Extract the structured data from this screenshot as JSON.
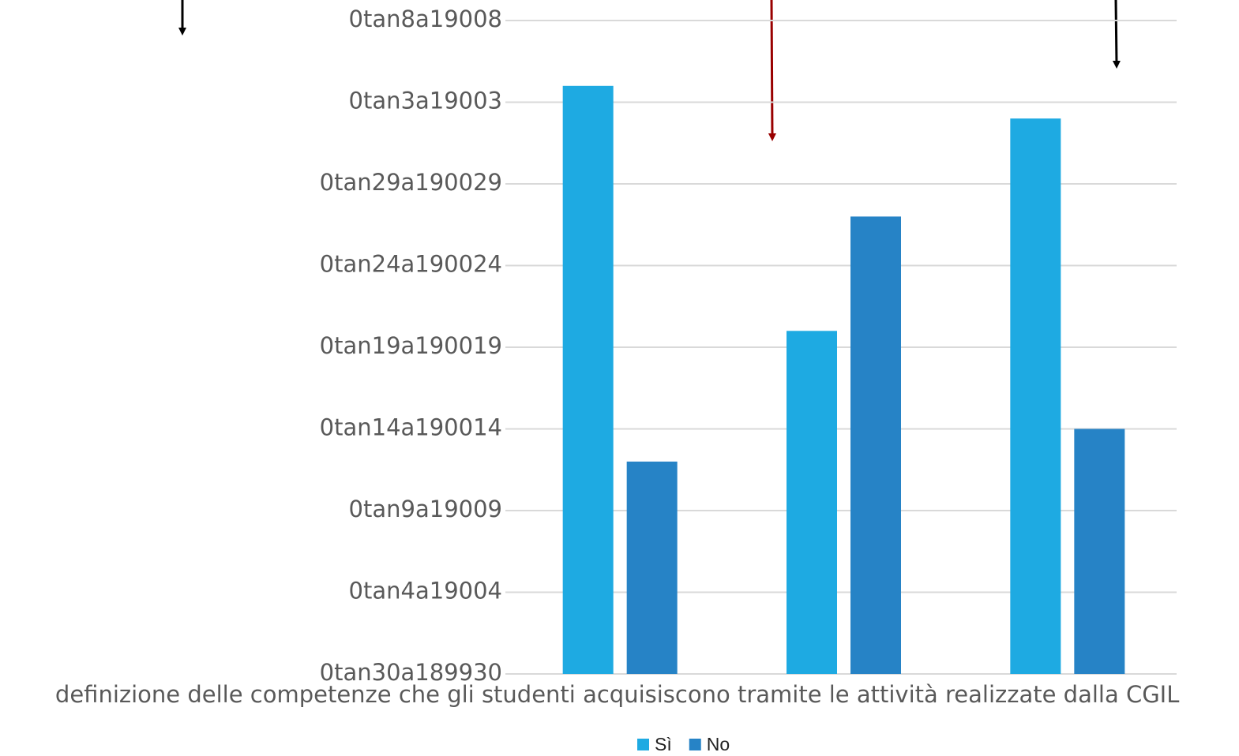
{
  "chart_data": {
    "type": "bar",
    "categories": [
      "definizione delle competenze che gli studenti acquisiscono tramite le attività realizzate dalla CGIL",
      null,
      null
    ],
    "series": [
      {
        "name": "Sì",
        "color": "#1eaae2",
        "values": [
          7.2,
          4.2,
          6.8
        ]
      },
      {
        "name": "No",
        "color": "#2683c6",
        "values": [
          2.6,
          5.6,
          3.0
        ]
      }
    ],
    "ylim": [
      0,
      8
    ],
    "yticks": [
      {
        "value": 0,
        "label": "0tan30a189930"
      },
      {
        "value": 1,
        "label": "0tan4a19004"
      },
      {
        "value": 2,
        "label": "0tan9a19009"
      },
      {
        "value": 3,
        "label": "0tan14a190014"
      },
      {
        "value": 4,
        "label": "0tan19a190019"
      },
      {
        "value": 5,
        "label": "0tan24a190024"
      },
      {
        "value": 6,
        "label": "0tan29a190029"
      },
      {
        "value": 7,
        "label": "0tan3a19003"
      },
      {
        "value": 8,
        "label": "0tan8a19008"
      }
    ],
    "grid": true,
    "legend": "bottom"
  }
}
